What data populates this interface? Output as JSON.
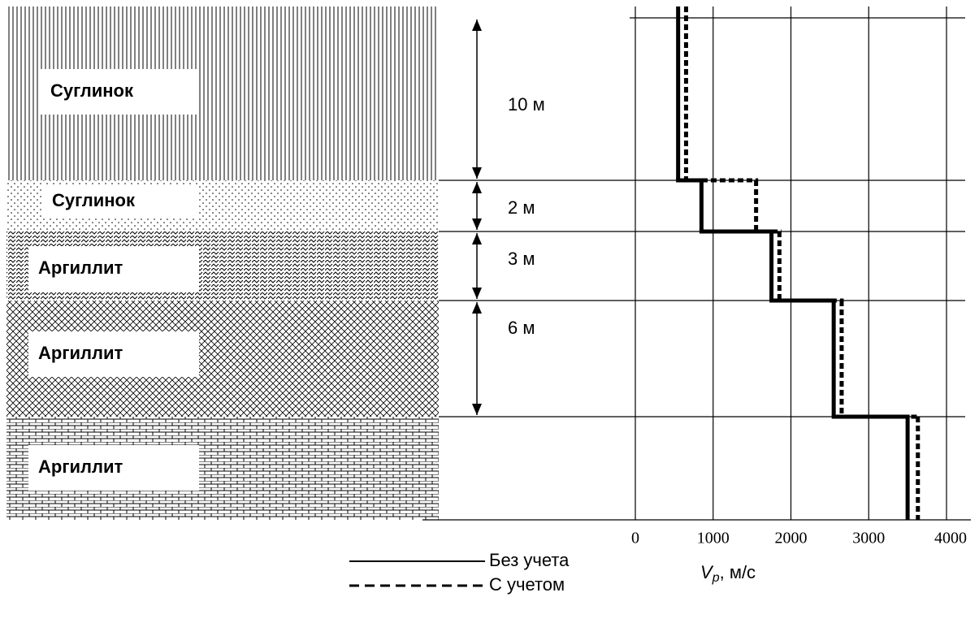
{
  "layers": [
    {
      "label": "Суглинок",
      "thickness": "10 м"
    },
    {
      "label": "Суглинок",
      "thickness": "2 м"
    },
    {
      "label": "Аргиллит",
      "thickness": "3 м"
    },
    {
      "label": "Аргиллит",
      "thickness": "6 м"
    },
    {
      "label": "Аргиллит"
    }
  ],
  "chart_data": {
    "type": "step",
    "xlabel": {
      "symbol": "V",
      "subscript": "p",
      "unit": ", м/с"
    },
    "xlim": [
      0,
      4000
    ],
    "xticks": [
      0,
      1000,
      2000,
      3000,
      4000
    ],
    "grid": true,
    "series": [
      {
        "name": "Без учета",
        "color": "#000000",
        "line_style": "solid",
        "values": [
          550,
          850,
          1750,
          2550,
          3500
        ]
      },
      {
        "name": "С учетом",
        "color": "#000000",
        "line_style": "dashed",
        "values": [
          600,
          1500,
          1800,
          2600,
          3580
        ]
      }
    ]
  }
}
